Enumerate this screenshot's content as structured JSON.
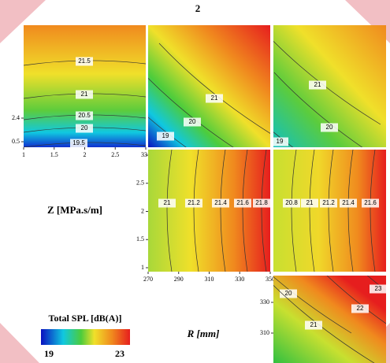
{
  "title": "2",
  "y_label": "Z [MPa.s/m]",
  "x_label": "R [mm]",
  "panels": [
    {
      "levels": [
        21.5,
        21,
        20.5,
        20,
        19.5
      ],
      "xticks": [
        1,
        1.5,
        2,
        2.5,
        3
      ],
      "yticks": [
        2.4,
        0.5
      ]
    },
    {
      "levels": [
        21,
        20,
        19
      ]
    },
    {
      "levels": [
        21,
        20,
        19
      ]
    },
    {
      "levels": [
        21,
        21.2,
        21.4,
        21.6,
        21.8
      ],
      "xticks": [
        270,
        290,
        310,
        330,
        350
      ],
      "yticks": [
        3,
        2.5,
        2,
        1.5,
        1
      ]
    },
    {
      "levels": [
        20.8,
        21,
        21.2,
        21.4,
        21.6
      ]
    },
    {
      "levels": [
        20,
        21,
        22,
        23
      ],
      "yticks": [
        330,
        310
      ]
    }
  ],
  "colorbar": {
    "title": "Total SPL [dB(A)]",
    "min": 19,
    "max": 23
  }
}
